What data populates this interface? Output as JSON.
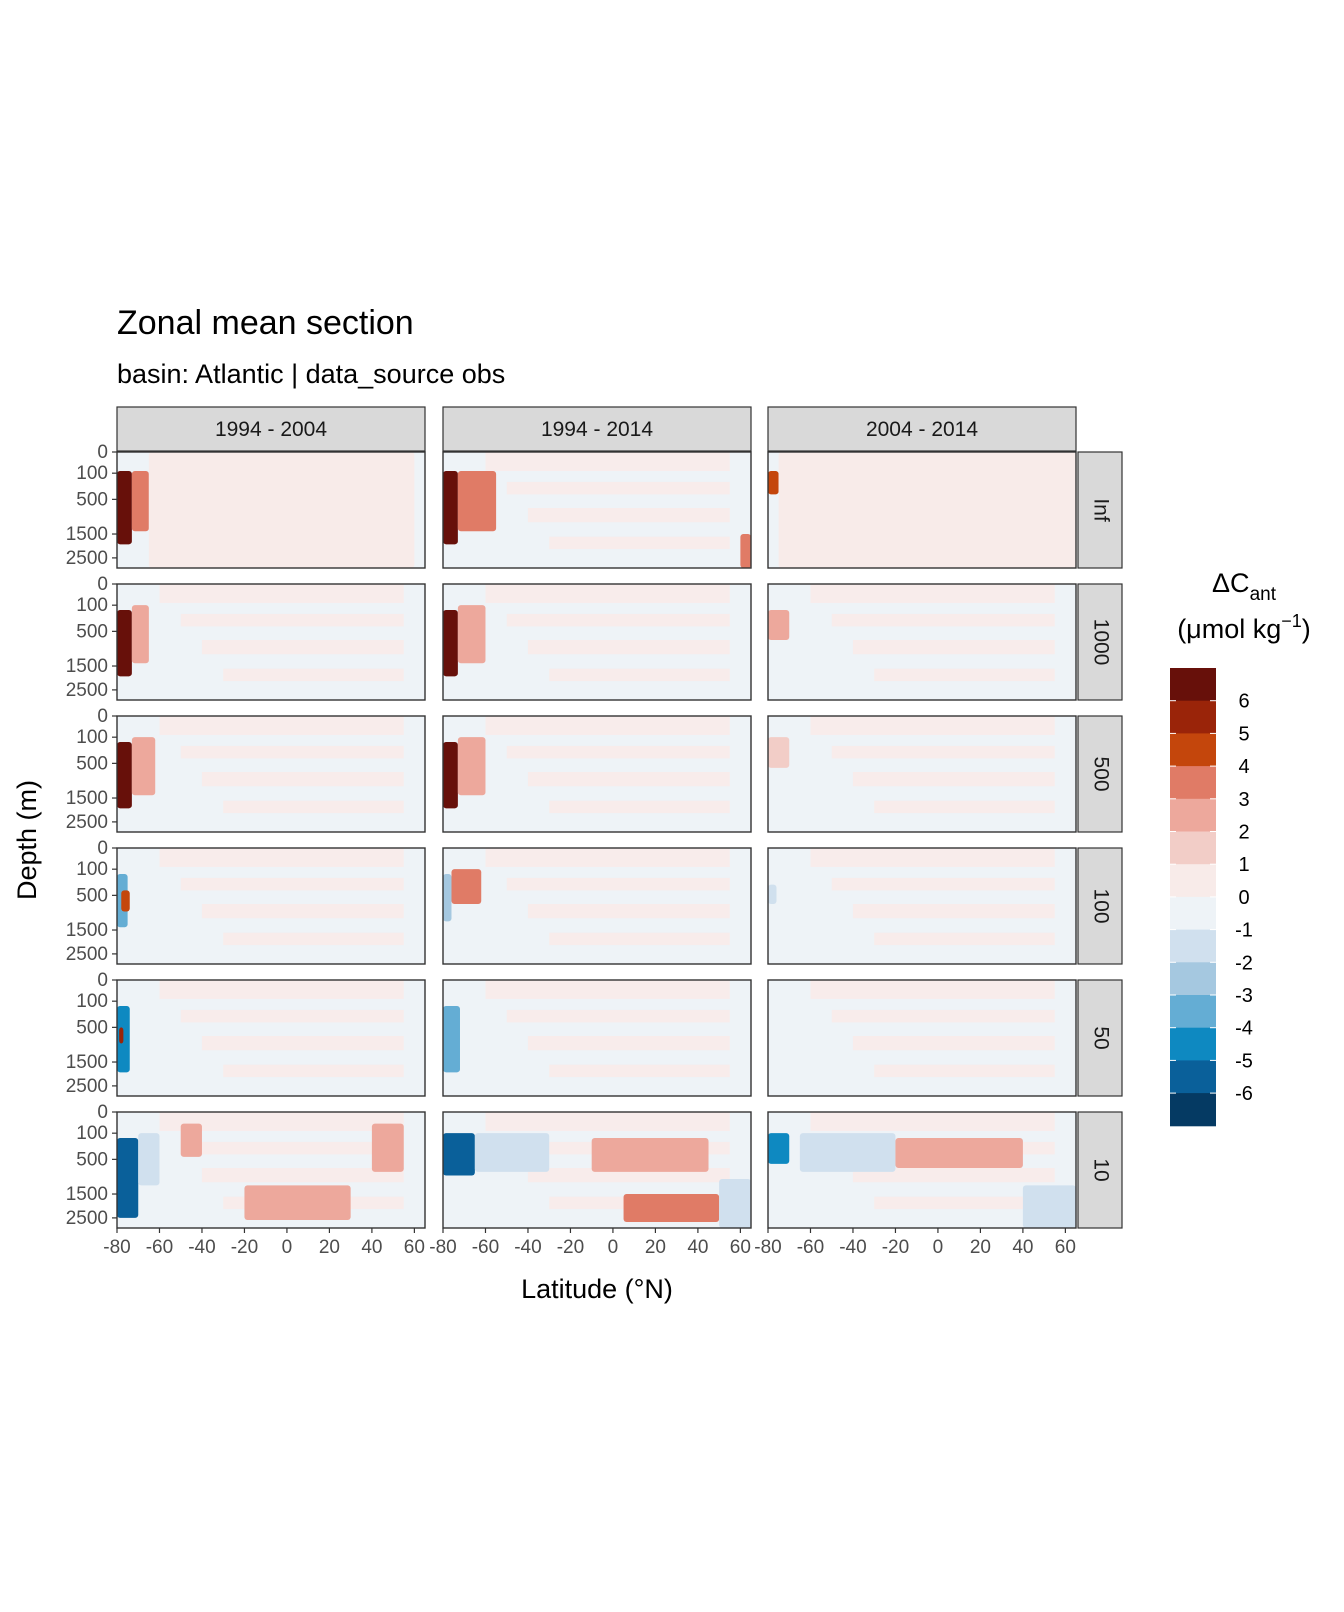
{
  "chart_data": {
    "type": "heatmap",
    "title": "Zonal mean section",
    "subtitle": "basin: Atlantic | data_source obs",
    "xlabel": "Latitude (°N)",
    "ylabel": "Depth (m)",
    "x_ticks": [
      "-80",
      "-60",
      "-40",
      "-20",
      "0",
      "20",
      "40",
      "60"
    ],
    "x_tick_values": [
      -80,
      -60,
      -40,
      -20,
      0,
      20,
      40,
      60
    ],
    "xlim": [
      -80,
      65
    ],
    "y_ticks": [
      "0",
      "100",
      "500",
      "1500",
      "2500"
    ],
    "y_tick_values": [
      0,
      100,
      500,
      1500,
      2500
    ],
    "ylim": [
      3000,
      0
    ],
    "y_scale": "sqrt",
    "grid": false,
    "facet_columns": [
      "1994 - 2004",
      "1994 - 2014",
      "2004 - 2014"
    ],
    "facet_rows": [
      "Inf",
      "1000",
      "500",
      "100",
      "50",
      "10"
    ],
    "legend": {
      "title_main": "ΔC",
      "title_sub": "ant",
      "title_units_prefix": "(μmol kg",
      "title_units_sup": "−1",
      "title_units_suffix": ")",
      "position": "right",
      "labels": [
        "6",
        "5",
        "4",
        "3",
        "2",
        "1",
        "0",
        "-1",
        "-2",
        "-3",
        "-4",
        "-5",
        "-6"
      ],
      "colors": [
        "#67100a",
        "#9a2409",
        "#c4460c",
        "#e07b66",
        "#eda89c",
        "#f2cdc7",
        "#f8ebe9",
        "#eef3f7",
        "#d0e0ee",
        "#a5c8e0",
        "#64add4",
        "#0e89c1",
        "#0a609a",
        "#053a63"
      ]
    },
    "panel_features": [
      [
        [
          {
            "lat_range": [
              -80,
              -73
            ],
            "depth_range": [
              80,
              1900
            ],
            "level": 6
          },
          {
            "lat_range": [
              -73,
              -65
            ],
            "depth_range": [
              80,
              1400
            ],
            "level": 3
          },
          {
            "lat_range": [
              -65,
              60
            ],
            "depth_range": [
              0,
              3000
            ],
            "level": 0
          }
        ],
        [
          {
            "lat_range": [
              -80,
              -73
            ],
            "depth_range": [
              80,
              1900
            ],
            "level": 6
          },
          {
            "lat_range": [
              -73,
              -55
            ],
            "depth_range": [
              80,
              1400
            ],
            "level": 3
          },
          {
            "lat_range": [
              60,
              65
            ],
            "depth_range": [
              1500,
              3000
            ],
            "level": 3
          }
        ],
        [
          {
            "lat_range": [
              -80,
              -75
            ],
            "depth_range": [
              80,
              400
            ],
            "level": 4
          },
          {
            "lat_range": [
              -75,
              65
            ],
            "depth_range": [
              0,
              3000
            ],
            "level": 0
          }
        ]
      ],
      [
        [
          {
            "lat_range": [
              -80,
              -73
            ],
            "depth_range": [
              150,
              1900
            ],
            "level": 6
          },
          {
            "lat_range": [
              -73,
              -65
            ],
            "depth_range": [
              100,
              1400
            ],
            "level": 2
          }
        ],
        [
          {
            "lat_range": [
              -80,
              -73
            ],
            "depth_range": [
              150,
              1900
            ],
            "level": 6
          },
          {
            "lat_range": [
              -73,
              -60
            ],
            "depth_range": [
              100,
              1400
            ],
            "level": 2
          }
        ],
        [
          {
            "lat_range": [
              -80,
              -70
            ],
            "depth_range": [
              150,
              700
            ],
            "level": 2
          }
        ]
      ],
      [
        [
          {
            "lat_range": [
              -80,
              -73
            ],
            "depth_range": [
              150,
              1900
            ],
            "level": 6
          },
          {
            "lat_range": [
              -73,
              -62
            ],
            "depth_range": [
              100,
              1400
            ],
            "level": 2
          }
        ],
        [
          {
            "lat_range": [
              -80,
              -73
            ],
            "depth_range": [
              150,
              1900
            ],
            "level": 6
          },
          {
            "lat_range": [
              -73,
              -60
            ],
            "depth_range": [
              100,
              1400
            ],
            "level": 2
          }
        ],
        [
          {
            "lat_range": [
              -80,
              -70
            ],
            "depth_range": [
              100,
              600
            ],
            "level": 1
          }
        ]
      ],
      [
        [
          {
            "lat_range": [
              -80,
              -75
            ],
            "depth_range": [
              150,
              1400
            ],
            "level": -4
          },
          {
            "lat_range": [
              -78,
              -74
            ],
            "depth_range": [
              400,
              900
            ],
            "level": 4
          }
        ],
        [
          {
            "lat_range": [
              -80,
              -76
            ],
            "depth_range": [
              150,
              1200
            ],
            "level": -3
          },
          {
            "lat_range": [
              -76,
              -62
            ],
            "depth_range": [
              100,
              700
            ],
            "level": 3
          }
        ],
        [
          {
            "lat_range": [
              -80,
              -76
            ],
            "depth_range": [
              300,
              700
            ],
            "level": -2
          }
        ]
      ],
      [
        [
          {
            "lat_range": [
              -80,
              -74
            ],
            "depth_range": [
              150,
              1900
            ],
            "level": -5
          },
          {
            "lat_range": [
              -79,
              -77
            ],
            "depth_range": [
              500,
              900
            ],
            "level": 5
          }
        ],
        [
          {
            "lat_range": [
              -80,
              -72
            ],
            "depth_range": [
              150,
              1900
            ],
            "level": -4
          }
        ],
        [
          {
            "lat_range": [
              -80,
              -76
            ],
            "depth_range": [
              300,
              900
            ],
            "level": -1
          }
        ]
      ],
      [
        [
          {
            "lat_range": [
              -80,
              -70
            ],
            "depth_range": [
              150,
              2500
            ],
            "level": -6
          },
          {
            "lat_range": [
              -70,
              -60
            ],
            "depth_range": [
              100,
              1200
            ],
            "level": -2
          },
          {
            "lat_range": [
              -50,
              -40
            ],
            "depth_range": [
              30,
              450
            ],
            "level": 2
          },
          {
            "lat_range": [
              40,
              55
            ],
            "depth_range": [
              30,
              800
            ],
            "level": 2
          },
          {
            "lat_range": [
              -20,
              30
            ],
            "depth_range": [
              1200,
              2600
            ],
            "level": 2
          }
        ],
        [
          {
            "lat_range": [
              -80,
              -65
            ],
            "depth_range": [
              100,
              900
            ],
            "level": -6
          },
          {
            "lat_range": [
              -65,
              -30
            ],
            "depth_range": [
              100,
              800
            ],
            "level": -2
          },
          {
            "lat_range": [
              -10,
              45
            ],
            "depth_range": [
              150,
              800
            ],
            "level": 2
          },
          {
            "lat_range": [
              5,
              50
            ],
            "depth_range": [
              1500,
              2700
            ],
            "level": 3
          },
          {
            "lat_range": [
              50,
              65
            ],
            "depth_range": [
              1000,
              3000
            ],
            "level": -2
          }
        ],
        [
          {
            "lat_range": [
              -80,
              -70
            ],
            "depth_range": [
              100,
              600
            ],
            "level": -5
          },
          {
            "lat_range": [
              -65,
              -20
            ],
            "depth_range": [
              100,
              800
            ],
            "level": -2
          },
          {
            "lat_range": [
              -20,
              40
            ],
            "depth_range": [
              150,
              700
            ],
            "level": 2
          },
          {
            "lat_range": [
              40,
              65
            ],
            "depth_range": [
              1200,
              3000
            ],
            "level": -2
          }
        ]
      ]
    ]
  }
}
